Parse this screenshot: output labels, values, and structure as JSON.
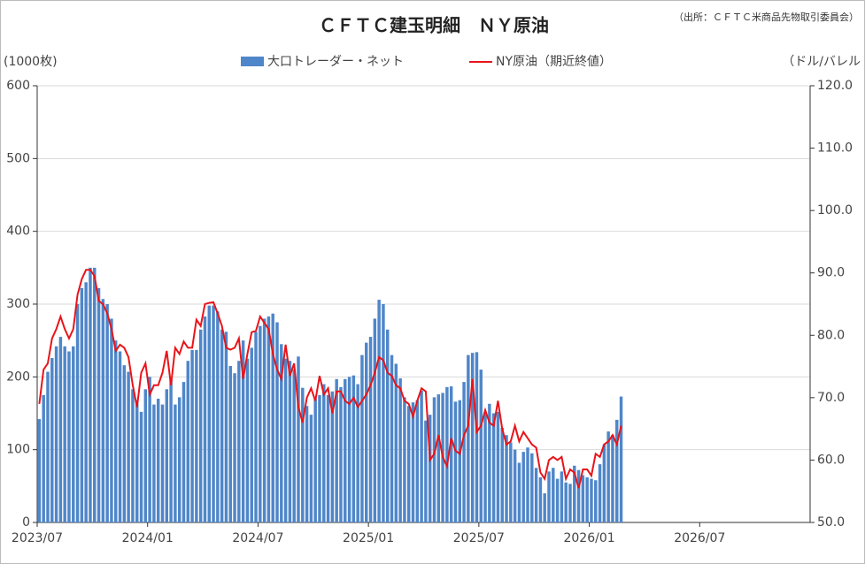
{
  "chart_data": {
    "type": "bar_line",
    "title": "ＣＦＴＣ建玉明細　ＮＹ原油",
    "source": "（出所：ＣＦＴＣ米商品先物取引委員会）",
    "y_label": "(1000枚)",
    "y2_label": "（ドル/バレル",
    "categories": [
      "2023/07",
      null,
      null,
      null,
      null,
      null,
      null,
      null,
      null,
      null,
      null,
      null,
      null,
      null,
      null,
      null,
      null,
      null,
      null,
      null,
      null,
      null,
      null,
      null,
      null,
      null,
      "2024/01",
      null,
      null,
      null,
      null,
      null,
      null,
      null,
      null,
      null,
      null,
      null,
      null,
      null,
      null,
      null,
      null,
      null,
      null,
      null,
      null,
      null,
      null,
      null,
      null,
      null,
      "2024/07",
      null,
      null,
      null,
      null,
      null,
      null,
      null,
      null,
      null,
      null,
      null,
      null,
      null,
      null,
      null,
      null,
      null,
      null,
      null,
      null,
      null,
      null,
      null,
      null,
      null,
      "2025/01",
      null,
      null,
      null,
      null,
      null,
      null,
      null,
      null,
      null,
      null,
      null,
      null,
      null,
      null,
      null,
      null,
      null,
      null,
      null,
      null,
      null,
      null,
      null,
      null,
      null,
      "2025/07",
      null,
      null,
      null,
      null,
      null,
      null,
      null,
      null,
      null,
      null,
      null,
      null,
      null,
      null,
      null,
      null,
      null,
      null,
      null,
      null,
      null,
      null,
      null,
      null,
      null,
      "2026/01",
      null,
      null,
      null,
      null,
      null,
      null,
      null,
      null,
      null,
      null,
      null,
      null,
      null,
      null,
      null,
      null,
      null,
      null,
      null,
      null,
      null,
      null,
      null,
      null,
      null,
      "2026/07",
      null,
      null,
      null,
      null,
      null,
      null,
      null,
      null,
      null,
      null,
      null,
      null,
      null,
      null,
      null,
      null,
      null,
      null,
      null,
      null,
      null,
      null,
      null,
      null,
      null
    ],
    "series": [
      {
        "name": "大口トレーダー・ネット",
        "type": "bar",
        "color": "#4f86c9",
        "values": [
          142,
          175,
          207,
          226,
          242,
          255,
          242,
          235,
          242,
          300,
          322,
          330,
          350,
          350,
          322,
          307,
          300,
          280,
          250,
          235,
          216,
          207,
          183,
          168,
          152,
          183,
          200,
          162,
          170,
          162,
          183,
          197,
          162,
          172,
          193,
          222,
          237,
          237,
          265,
          283,
          298,
          298,
          290,
          265,
          262,
          215,
          205,
          222,
          250,
          225,
          240,
          262,
          270,
          280,
          283,
          287,
          275,
          245,
          225,
          222,
          210,
          228,
          185,
          160,
          148,
          170,
          175,
          190,
          175,
          180,
          197,
          186,
          197,
          200,
          202,
          190,
          230,
          247,
          255,
          280,
          306,
          300,
          265,
          230,
          218,
          198,
          172,
          160,
          165,
          168,
          181,
          140,
          148,
          172,
          176,
          178,
          186,
          187,
          166,
          168,
          193,
          230,
          233,
          234,
          210,
          150,
          163,
          150,
          152,
          130,
          120,
          110,
          100,
          82,
          97,
          103,
          95,
          75,
          62,
          40,
          70,
          75,
          60,
          70,
          55,
          53,
          78,
          72,
          65,
          62,
          60,
          58,
          80,
          107,
          125,
          120,
          141,
          173,
          null,
          null,
          null,
          null,
          null,
          null,
          null,
          null,
          null,
          null,
          null,
          null,
          null,
          null,
          null,
          null,
          null,
          null,
          null,
          null,
          null,
          null,
          null,
          null,
          null,
          null,
          null,
          null,
          null,
          null,
          null,
          null,
          null,
          null,
          null,
          null,
          null,
          null,
          null,
          null,
          null,
          null,
          null,
          null
        ]
      },
      {
        "name": "NY原油（期近終値）",
        "type": "line",
        "axis": "y2",
        "color": "#e8141a",
        "values": [
          69,
          74.5,
          75.5,
          79.5,
          81,
          83,
          81,
          79.5,
          81,
          86.5,
          89,
          90.5,
          90.5,
          89.5,
          85.5,
          85,
          83.5,
          81,
          77.5,
          78.5,
          78,
          76.5,
          72,
          68.5,
          74,
          75.5,
          70.5,
          72,
          72,
          74,
          77.5,
          72,
          78,
          77,
          79,
          78,
          78,
          82.5,
          81.5,
          85,
          85.2,
          85.3,
          83.5,
          81.5,
          78,
          77.7,
          78,
          79.5,
          73,
          77,
          80.5,
          80.7,
          83,
          82,
          81,
          77,
          74.5,
          73,
          78.5,
          73.5,
          75.5,
          68.5,
          66,
          70,
          71.5,
          69.5,
          73.5,
          70.5,
          71.5,
          67.5,
          71,
          71,
          69.5,
          69,
          70,
          68.5,
          69.5,
          70.5,
          72,
          74,
          76.5,
          76,
          74,
          73.5,
          72,
          71.5,
          69.5,
          69,
          67,
          69.5,
          71.5,
          71,
          60,
          61,
          64,
          60.5,
          59,
          63.5,
          61.5,
          61,
          64,
          65.5,
          73,
          64.5,
          65.5,
          68,
          66,
          65.5,
          69.5,
          65,
          62.5,
          63,
          65.5,
          63,
          64.5,
          63.5,
          62.5,
          62,
          58,
          57,
          60,
          60.5,
          60,
          60.5,
          57,
          58.5,
          58,
          55.5,
          58.5,
          58.5,
          57.5,
          61,
          60.5,
          62.5,
          63,
          64,
          62.5,
          65.5,
          null,
          null,
          null,
          null,
          null,
          null,
          null,
          null,
          null,
          null,
          null,
          null,
          null,
          null,
          null,
          null,
          null,
          null,
          null,
          null,
          null,
          null,
          null,
          null,
          null,
          null,
          null,
          null,
          null,
          null,
          null,
          null,
          null,
          null,
          null,
          null,
          null,
          null,
          null,
          null,
          null,
          null,
          null,
          null
        ]
      }
    ],
    "ylim": [
      0,
      600
    ],
    "yticks": [
      0,
      100,
      200,
      300,
      400,
      500,
      600
    ],
    "y2lim": [
      50,
      120
    ],
    "y2ticks": [
      {
        "value": 50,
        "label": "50.0"
      },
      {
        "value": 60,
        "label": "60.0"
      },
      {
        "value": 70,
        "label": "70.0"
      },
      {
        "value": 80,
        "label": "80.0"
      },
      {
        "value": 90,
        "label": "90.0"
      },
      {
        "value": 100,
        "label": "100.0"
      },
      {
        "value": 110,
        "label": "110.0"
      },
      {
        "value": 120,
        "label": "120.0"
      }
    ],
    "grid": true,
    "legend": "top"
  }
}
